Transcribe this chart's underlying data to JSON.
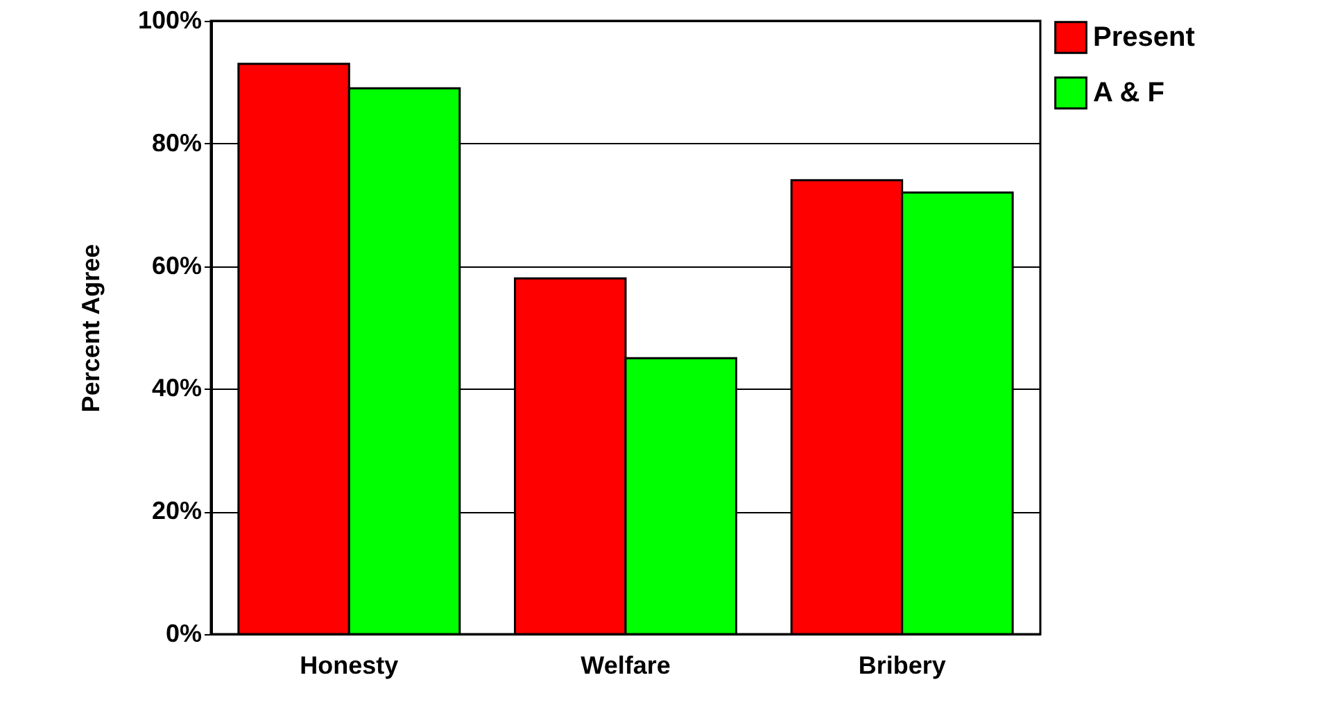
{
  "chart_data": {
    "type": "bar",
    "ylabel": "Percent Agree",
    "categories": [
      "Honesty",
      "Welfare",
      "Bribery"
    ],
    "series": [
      {
        "name": "Present",
        "color": "#ff0000",
        "values": [
          93,
          58,
          74
        ]
      },
      {
        "name": "A & F",
        "color": "#00ff00",
        "values": [
          89,
          45,
          72
        ]
      }
    ],
    "ylim": [
      0,
      100
    ],
    "yticks": [
      {
        "value": 0,
        "label": "0%"
      },
      {
        "value": 20,
        "label": "20%"
      },
      {
        "value": 40,
        "label": "40%"
      },
      {
        "value": 60,
        "label": "60%"
      },
      {
        "value": 80,
        "label": "80%"
      },
      {
        "value": 100,
        "label": "100%"
      }
    ],
    "grid": "y",
    "legend": "right"
  }
}
